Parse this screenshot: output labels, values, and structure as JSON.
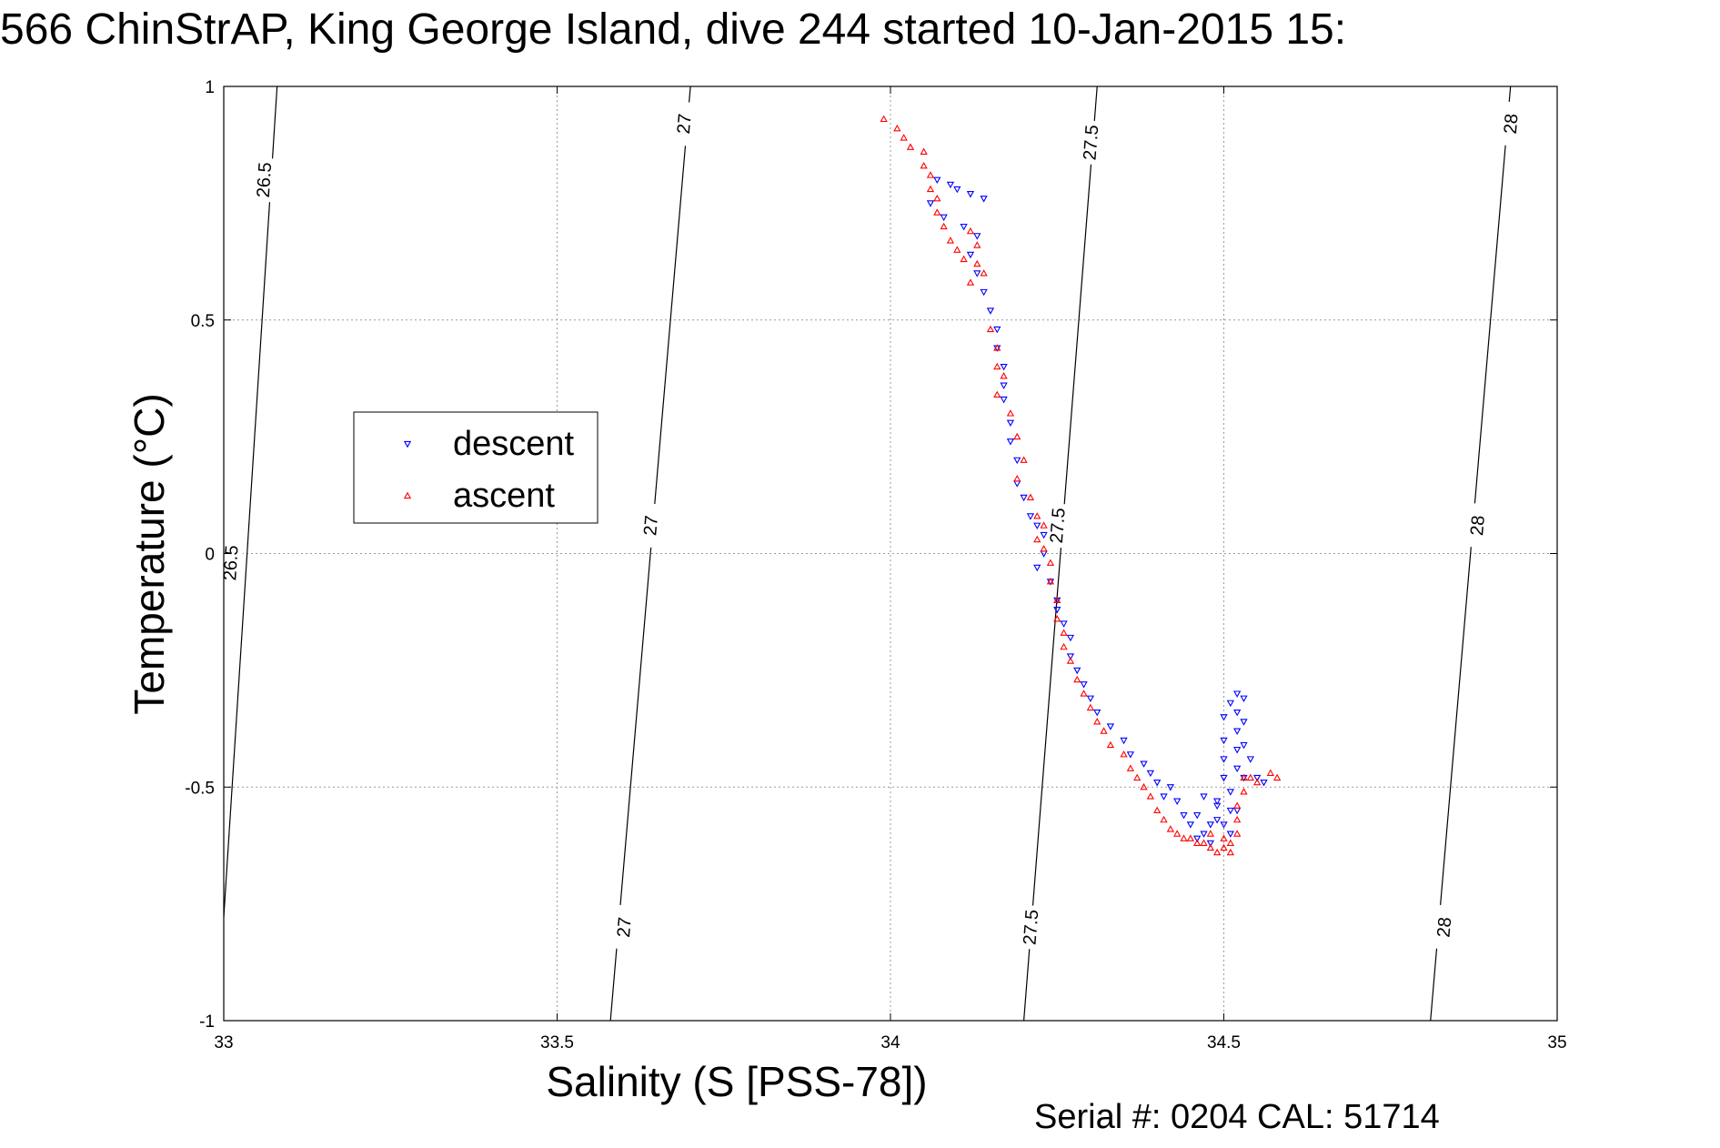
{
  "chart_data": {
    "type": "scatter",
    "title": "566 ChinStrAP, King George Island, dive 244 started 10-Jan-2015 15:",
    "xlabel": "Salinity (S [PSS-78])",
    "ylabel": "Temperature (°C)",
    "xlim": [
      33,
      35
    ],
    "ylim": [
      -1,
      1
    ],
    "xticks": [
      33,
      33.5,
      34,
      34.5,
      35
    ],
    "yticks": [
      -1,
      -0.5,
      0,
      0.5,
      1
    ],
    "xtick_labels": [
      "33",
      "33.5",
      "34",
      "34.5",
      "35"
    ],
    "ytick_labels": [
      "-1",
      "-0.5",
      "0",
      "0.5",
      "1"
    ],
    "grid": true,
    "legend_position": "left-middle",
    "series": [
      {
        "name": "descent",
        "marker": "triangle-down",
        "color": "#0000ff",
        "points": [
          [
            34.07,
            0.8
          ],
          [
            34.09,
            0.79
          ],
          [
            34.1,
            0.78
          ],
          [
            34.12,
            0.77
          ],
          [
            34.14,
            0.76
          ],
          [
            34.06,
            0.75
          ],
          [
            34.08,
            0.72
          ],
          [
            34.11,
            0.7
          ],
          [
            34.13,
            0.68
          ],
          [
            34.12,
            0.64
          ],
          [
            34.13,
            0.6
          ],
          [
            34.14,
            0.56
          ],
          [
            34.15,
            0.52
          ],
          [
            34.16,
            0.48
          ],
          [
            34.16,
            0.44
          ],
          [
            34.17,
            0.4
          ],
          [
            34.17,
            0.36
          ],
          [
            34.17,
            0.33
          ],
          [
            34.18,
            0.28
          ],
          [
            34.18,
            0.24
          ],
          [
            34.19,
            0.2
          ],
          [
            34.19,
            0.15
          ],
          [
            34.2,
            0.12
          ],
          [
            34.21,
            0.08
          ],
          [
            34.22,
            0.06
          ],
          [
            34.23,
            0.04
          ],
          [
            34.23,
            0.0
          ],
          [
            34.22,
            -0.03
          ],
          [
            34.24,
            -0.06
          ],
          [
            34.25,
            -0.1
          ],
          [
            34.25,
            -0.12
          ],
          [
            34.26,
            -0.15
          ],
          [
            34.27,
            -0.18
          ],
          [
            34.27,
            -0.22
          ],
          [
            34.28,
            -0.25
          ],
          [
            34.29,
            -0.28
          ],
          [
            34.3,
            -0.31
          ],
          [
            34.31,
            -0.34
          ],
          [
            34.33,
            -0.37
          ],
          [
            34.35,
            -0.4
          ],
          [
            34.36,
            -0.43
          ],
          [
            34.38,
            -0.45
          ],
          [
            34.39,
            -0.47
          ],
          [
            34.4,
            -0.49
          ],
          [
            34.41,
            -0.52
          ],
          [
            34.42,
            -0.5
          ],
          [
            34.43,
            -0.53
          ],
          [
            34.44,
            -0.56
          ],
          [
            34.45,
            -0.58
          ],
          [
            34.46,
            -0.56
          ],
          [
            34.47,
            -0.6
          ],
          [
            34.48,
            -0.62
          ],
          [
            34.49,
            -0.57
          ],
          [
            34.49,
            -0.53
          ],
          [
            34.5,
            -0.48
          ],
          [
            34.5,
            -0.44
          ],
          [
            34.5,
            -0.4
          ],
          [
            34.5,
            -0.35
          ],
          [
            34.51,
            -0.32
          ],
          [
            34.52,
            -0.3
          ],
          [
            34.52,
            -0.34
          ],
          [
            34.52,
            -0.38
          ],
          [
            34.52,
            -0.42
          ],
          [
            34.52,
            -0.46
          ],
          [
            34.53,
            -0.36
          ],
          [
            34.53,
            -0.31
          ],
          [
            34.53,
            -0.41
          ],
          [
            34.53,
            -0.48
          ],
          [
            34.51,
            -0.55
          ],
          [
            34.51,
            -0.6
          ],
          [
            34.5,
            -0.58
          ],
          [
            34.54,
            -0.44
          ],
          [
            34.55,
            -0.48
          ],
          [
            34.56,
            -0.49
          ],
          [
            34.51,
            -0.51
          ],
          [
            34.49,
            -0.54
          ],
          [
            34.48,
            -0.58
          ],
          [
            34.47,
            -0.52
          ],
          [
            34.46,
            -0.61
          ],
          [
            34.52,
            -0.55
          ]
        ]
      },
      {
        "name": "ascent",
        "marker": "triangle-up",
        "color": "#ff0000",
        "points": [
          [
            33.99,
            0.93
          ],
          [
            34.01,
            0.91
          ],
          [
            34.02,
            0.89
          ],
          [
            34.03,
            0.87
          ],
          [
            34.05,
            0.86
          ],
          [
            34.05,
            0.83
          ],
          [
            34.06,
            0.81
          ],
          [
            34.06,
            0.78
          ],
          [
            34.07,
            0.76
          ],
          [
            34.07,
            0.73
          ],
          [
            34.08,
            0.7
          ],
          [
            34.09,
            0.67
          ],
          [
            34.1,
            0.65
          ],
          [
            34.12,
            0.69
          ],
          [
            34.13,
            0.66
          ],
          [
            34.13,
            0.62
          ],
          [
            34.14,
            0.6
          ],
          [
            34.11,
            0.63
          ],
          [
            34.12,
            0.58
          ],
          [
            34.15,
            0.48
          ],
          [
            34.16,
            0.44
          ],
          [
            34.16,
            0.4
          ],
          [
            34.17,
            0.38
          ],
          [
            34.16,
            0.34
          ],
          [
            34.18,
            0.3
          ],
          [
            34.19,
            0.25
          ],
          [
            34.2,
            0.2
          ],
          [
            34.19,
            0.16
          ],
          [
            34.21,
            0.12
          ],
          [
            34.22,
            0.08
          ],
          [
            34.23,
            0.06
          ],
          [
            34.22,
            0.03
          ],
          [
            34.23,
            0.01
          ],
          [
            34.24,
            -0.02
          ],
          [
            34.24,
            -0.06
          ],
          [
            34.25,
            -0.1
          ],
          [
            34.25,
            -0.14
          ],
          [
            34.26,
            -0.17
          ],
          [
            34.26,
            -0.2
          ],
          [
            34.27,
            -0.23
          ],
          [
            34.28,
            -0.27
          ],
          [
            34.29,
            -0.3
          ],
          [
            34.3,
            -0.33
          ],
          [
            34.31,
            -0.36
          ],
          [
            34.32,
            -0.38
          ],
          [
            34.33,
            -0.41
          ],
          [
            34.35,
            -0.43
          ],
          [
            34.36,
            -0.46
          ],
          [
            34.37,
            -0.48
          ],
          [
            34.38,
            -0.5
          ],
          [
            34.39,
            -0.52
          ],
          [
            34.4,
            -0.55
          ],
          [
            34.41,
            -0.57
          ],
          [
            34.42,
            -0.59
          ],
          [
            34.43,
            -0.6
          ],
          [
            34.44,
            -0.61
          ],
          [
            34.45,
            -0.61
          ],
          [
            34.46,
            -0.62
          ],
          [
            34.47,
            -0.62
          ],
          [
            34.48,
            -0.63
          ],
          [
            34.49,
            -0.64
          ],
          [
            34.5,
            -0.63
          ],
          [
            34.51,
            -0.62
          ],
          [
            34.52,
            -0.6
          ],
          [
            34.52,
            -0.57
          ],
          [
            34.52,
            -0.54
          ],
          [
            34.53,
            -0.51
          ],
          [
            34.53,
            -0.48
          ],
          [
            34.54,
            -0.48
          ],
          [
            34.55,
            -0.49
          ],
          [
            34.57,
            -0.47
          ],
          [
            34.58,
            -0.48
          ],
          [
            34.5,
            -0.61
          ],
          [
            34.51,
            -0.64
          ],
          [
            34.48,
            -0.6
          ]
        ]
      }
    ],
    "density_contours": [
      {
        "label": "26.5",
        "x_at_bottom": 32.99,
        "x_at_top": 33.08,
        "label_positions": [
          [
            33.06,
            0.8
          ],
          [
            33.01,
            -0.02
          ]
        ]
      },
      {
        "label": "27",
        "x_at_bottom": 33.58,
        "x_at_top": 33.7,
        "label_positions": [
          [
            33.69,
            0.92
          ],
          [
            33.64,
            0.06
          ],
          [
            33.6,
            -0.8
          ]
        ]
      },
      {
        "label": "27.5",
        "x_at_bottom": 34.2,
        "x_at_top": 34.31,
        "label_positions": [
          [
            34.3,
            0.88
          ],
          [
            34.25,
            0.06
          ],
          [
            34.21,
            -0.8
          ]
        ]
      },
      {
        "label": "28",
        "x_at_bottom": 34.81,
        "x_at_top": 34.93,
        "label_positions": [
          [
            34.93,
            0.92
          ],
          [
            34.88,
            0.06
          ],
          [
            34.83,
            -0.8
          ]
        ]
      }
    ]
  },
  "footer": {
    "serial": "Serial #: 0204  CAL: 51714"
  }
}
